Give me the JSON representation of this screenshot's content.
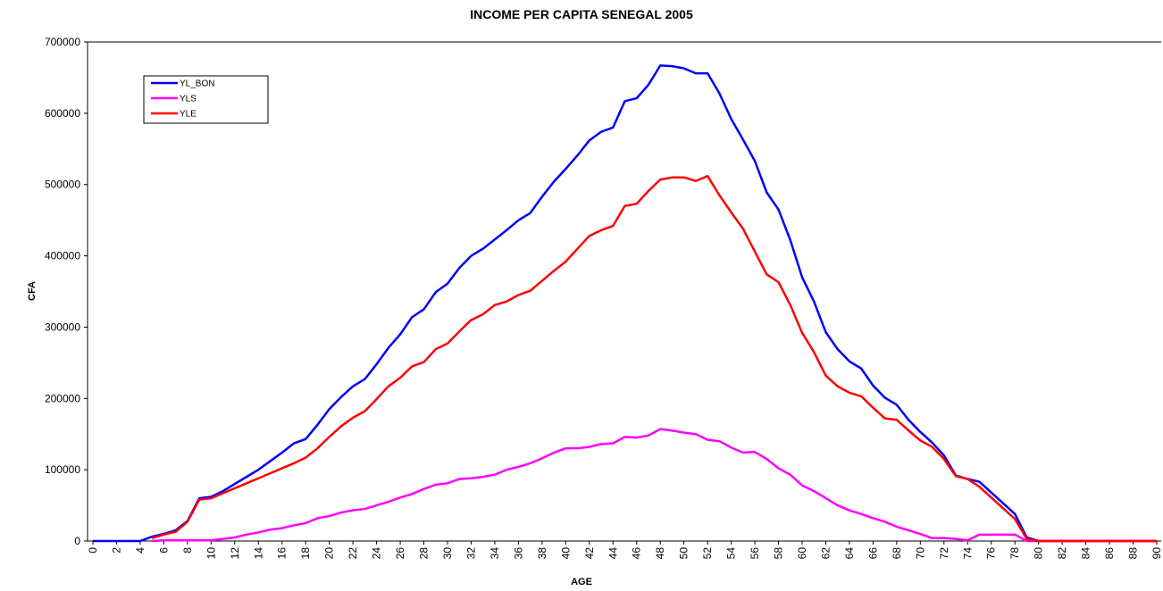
{
  "chart_data": {
    "type": "line",
    "title": "INCOME PER CAPITA SENEGAL 2005",
    "x_label": "AGE",
    "y_label": "CFA",
    "x": [
      0,
      1,
      2,
      3,
      4,
      5,
      6,
      7,
      8,
      9,
      10,
      11,
      12,
      13,
      14,
      15,
      16,
      17,
      18,
      19,
      20,
      21,
      22,
      23,
      24,
      25,
      26,
      27,
      28,
      29,
      30,
      31,
      32,
      33,
      34,
      35,
      36,
      37,
      38,
      39,
      40,
      41,
      42,
      43,
      44,
      45,
      46,
      47,
      48,
      49,
      50,
      51,
      52,
      53,
      54,
      55,
      56,
      57,
      58,
      59,
      60,
      61,
      62,
      63,
      64,
      65,
      66,
      67,
      68,
      69,
      70,
      71,
      72,
      73,
      74,
      75,
      76,
      77,
      78,
      79,
      80,
      81,
      82,
      83,
      84,
      85,
      86,
      87,
      88,
      89,
      90
    ],
    "xlim": [
      0,
      90
    ],
    "xticks": [
      0,
      2,
      4,
      6,
      8,
      10,
      12,
      14,
      16,
      18,
      20,
      22,
      24,
      26,
      28,
      30,
      32,
      34,
      36,
      38,
      40,
      42,
      44,
      46,
      48,
      50,
      52,
      54,
      56,
      58,
      60,
      62,
      64,
      66,
      68,
      70,
      72,
      74,
      76,
      78,
      80,
      82,
      84,
      86,
      88,
      90
    ],
    "ylim": [
      0,
      700000
    ],
    "yticks": [
      0,
      100000,
      200000,
      300000,
      400000,
      500000,
      600000,
      700000
    ],
    "grid": false,
    "legend": "upper left",
    "series": [
      {
        "name": "YL_BON",
        "color": "#0000ff",
        "values": [
          0,
          0,
          0,
          0,
          0,
          6000,
          10000,
          15000,
          28000,
          60000,
          62000,
          70000,
          80000,
          90000,
          100000,
          112000,
          124000,
          137000,
          143000,
          163000,
          185000,
          202000,
          217000,
          227000,
          248000,
          271000,
          290000,
          314000,
          325000,
          349000,
          361000,
          383000,
          400000,
          410000,
          423000,
          436000,
          450000,
          460000,
          483000,
          504000,
          522000,
          541000,
          562000,
          574000,
          580000,
          617000,
          621000,
          640000,
          667000,
          666000,
          663000,
          656000,
          656000,
          628000,
          592000,
          563000,
          533000,
          489000,
          465000,
          422000,
          370000,
          336000,
          293000,
          269000,
          252000,
          242000,
          218000,
          201000,
          191000,
          170000,
          153000,
          138000,
          120000,
          92000,
          87000,
          83000,
          68000,
          53000,
          38000,
          5000,
          0,
          0,
          0,
          0,
          0,
          0,
          0,
          0,
          0,
          0,
          0
        ]
      },
      {
        "name": "YLS",
        "color": "#ff00ff",
        "values": [
          null,
          null,
          null,
          null,
          null,
          0,
          1000,
          1000,
          1000,
          1000,
          1000,
          3000,
          5000,
          9000,
          12000,
          16000,
          18000,
          22000,
          25000,
          32000,
          35000,
          40000,
          43000,
          45000,
          50000,
          55000,
          61000,
          66000,
          73000,
          79000,
          81000,
          87000,
          88000,
          90000,
          93000,
          100000,
          104000,
          109000,
          116000,
          124000,
          130000,
          130000,
          132000,
          136000,
          137000,
          146000,
          145000,
          148000,
          157000,
          155000,
          152000,
          150000,
          142000,
          140000,
          131000,
          124000,
          125000,
          115000,
          102000,
          93000,
          78000,
          70000,
          60000,
          50000,
          43000,
          38000,
          32000,
          27000,
          20000,
          15000,
          10000,
          4000,
          4000,
          3000,
          1000,
          9000,
          9000,
          9000,
          9000,
          0,
          0,
          0,
          0,
          0,
          0,
          0,
          0,
          0,
          0,
          0,
          0
        ]
      },
      {
        "name": "YLE",
        "color": "#ff0000",
        "values": [
          null,
          null,
          null,
          null,
          null,
          4000,
          9000,
          13000,
          27000,
          58000,
          60000,
          67000,
          74000,
          81000,
          88000,
          95000,
          102000,
          109000,
          117000,
          130000,
          146000,
          161000,
          173000,
          182000,
          199000,
          217000,
          229000,
          245000,
          251000,
          269000,
          277000,
          294000,
          310000,
          318000,
          331000,
          336000,
          345000,
          351000,
          365000,
          379000,
          392000,
          410000,
          428000,
          436000,
          442000,
          470000,
          473000,
          491000,
          507000,
          510000,
          510000,
          505000,
          512000,
          485000,
          461000,
          438000,
          406000,
          374000,
          363000,
          331000,
          292000,
          265000,
          232000,
          217000,
          208000,
          203000,
          187000,
          172000,
          170000,
          155000,
          141000,
          132000,
          115000,
          91000,
          87000,
          76000,
          61000,
          46000,
          31000,
          3000,
          0,
          0,
          0,
          0,
          0,
          0,
          0,
          0,
          0,
          0,
          0
        ]
      }
    ]
  }
}
